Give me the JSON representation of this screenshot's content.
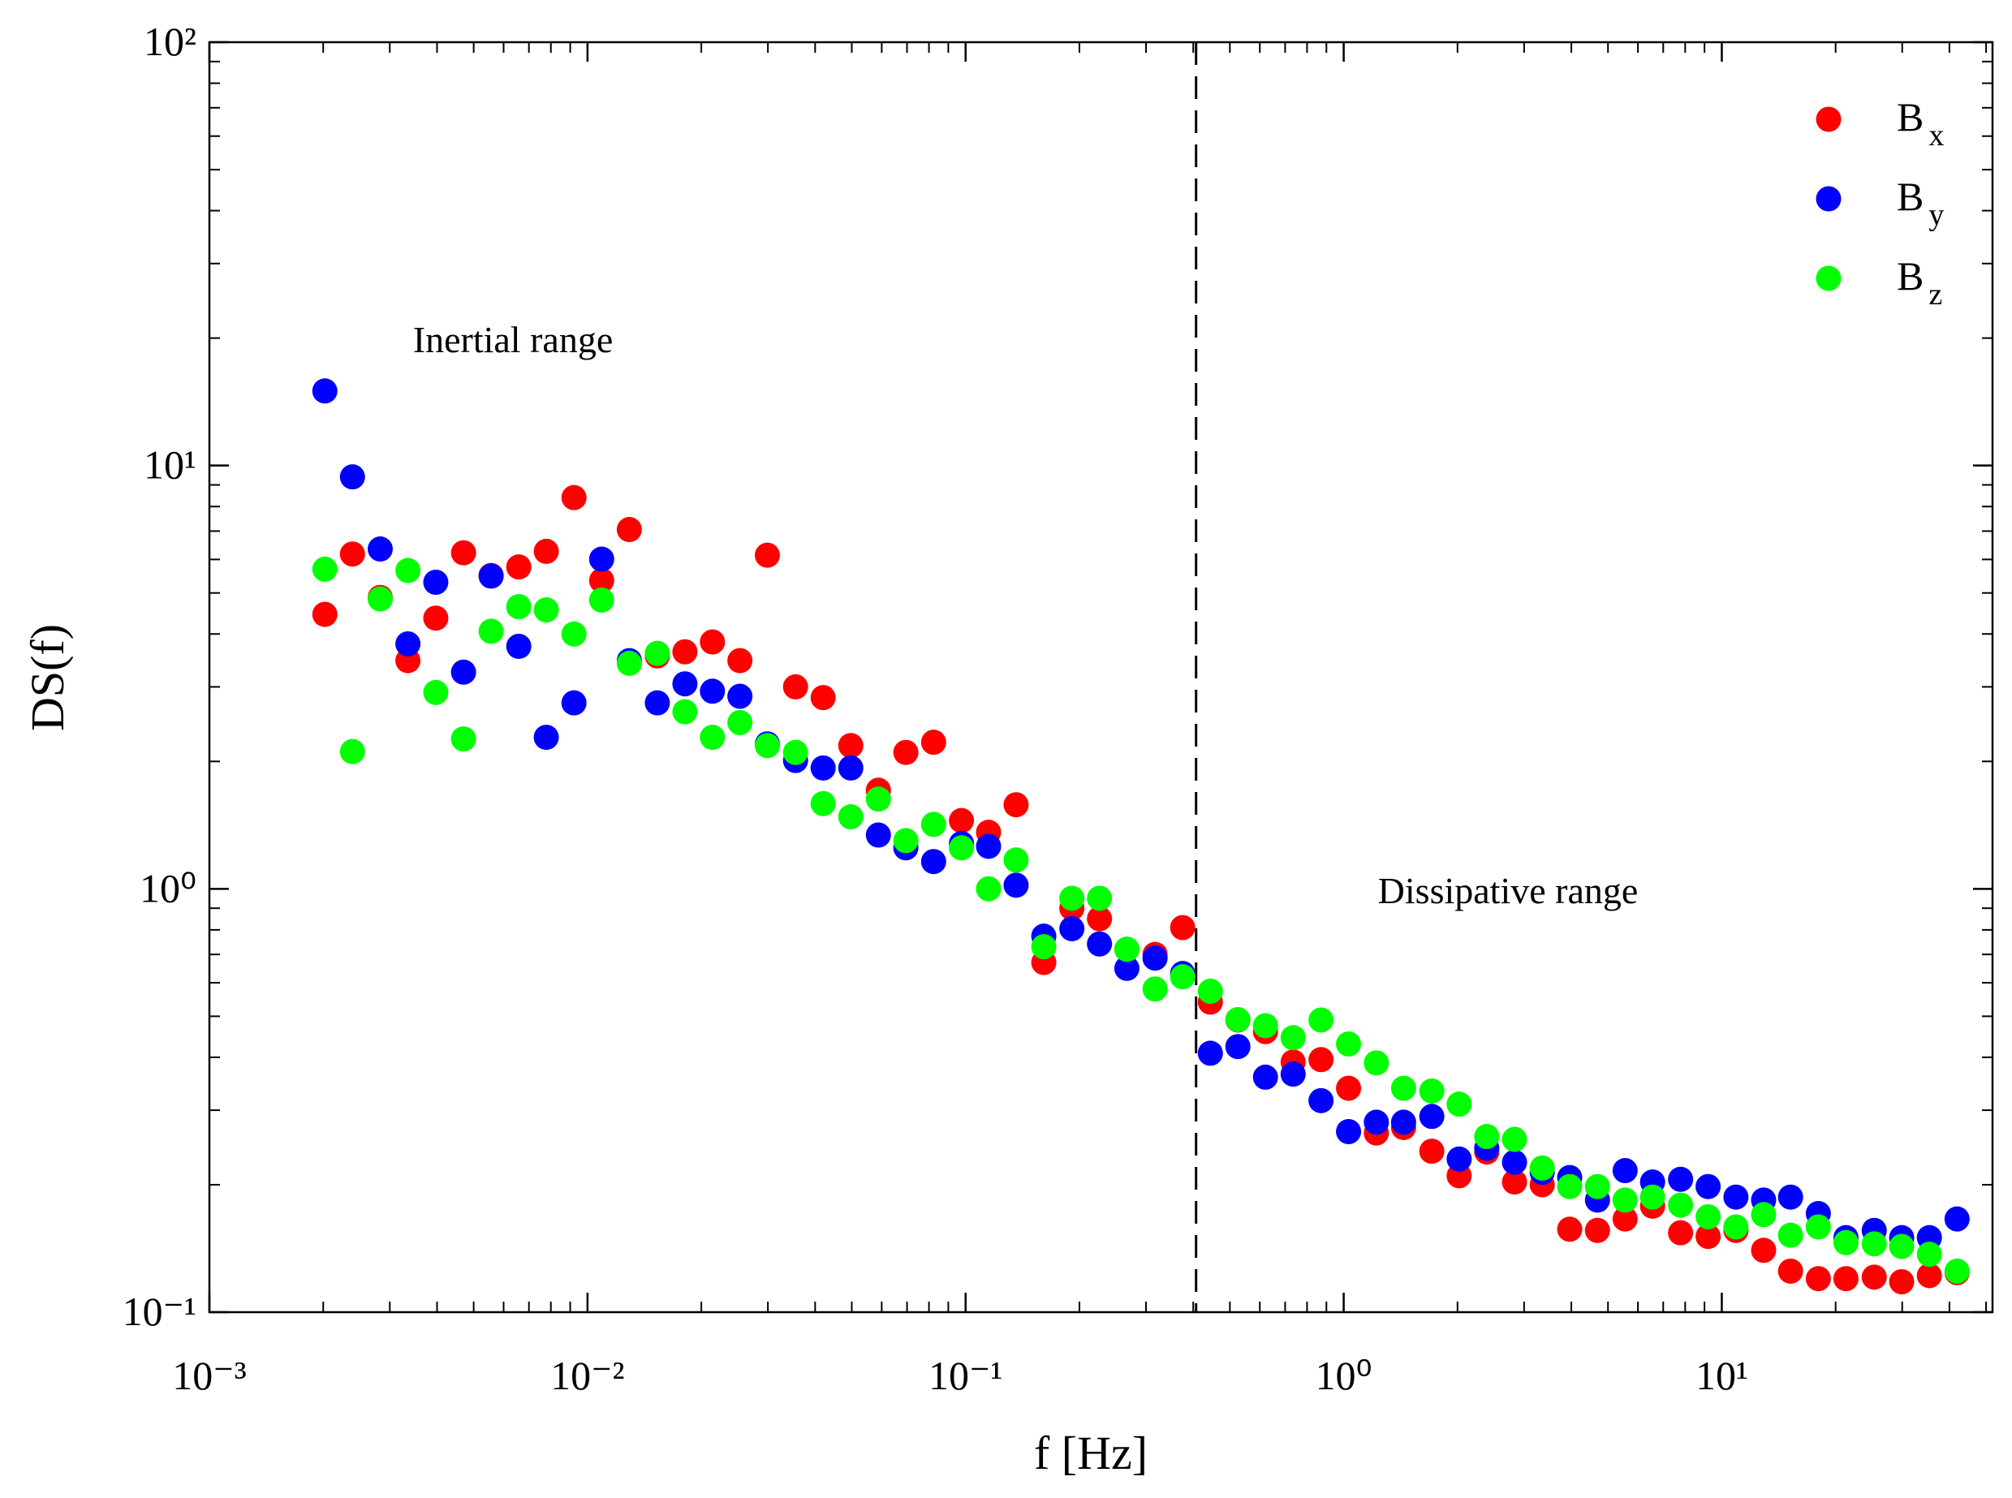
{
  "chart_data": {
    "type": "scatter",
    "xlabel": "f [Hz]",
    "ylabel": "DS(f)",
    "xscale": "log",
    "yscale": "log",
    "xlim": [
      0.001,
      52
    ],
    "ylim": [
      0.1,
      100
    ],
    "xticks": [
      {
        "value": 0.001,
        "label": "10⁻³"
      },
      {
        "value": 0.01,
        "label": "10⁻²"
      },
      {
        "value": 0.1,
        "label": "10⁻¹"
      },
      {
        "value": 1,
        "label": "10⁰"
      },
      {
        "value": 10,
        "label": "10¹"
      }
    ],
    "yticks": [
      {
        "value": 0.1,
        "label": "10⁻¹"
      },
      {
        "value": 1,
        "label": "10⁰"
      },
      {
        "value": 10,
        "label": "10¹"
      },
      {
        "value": 100,
        "label": "10²"
      }
    ],
    "legend": "upper right",
    "vline_x": 0.407,
    "annotations": [
      "Inertial range",
      "Dissipative range"
    ],
    "x": [
      0.00202,
      0.00239,
      0.00283,
      0.00335,
      0.00397,
      0.0047,
      0.00556,
      0.00658,
      0.00778,
      0.00921,
      0.0109,
      0.0129,
      0.0153,
      0.0181,
      0.0214,
      0.0253,
      0.0299,
      0.0355,
      0.042,
      0.0497,
      0.0588,
      0.0695,
      0.0823,
      0.0975,
      0.115,
      0.136,
      0.161,
      0.191,
      0.226,
      0.267,
      0.317,
      0.375,
      0.444,
      0.525,
      0.621,
      0.735,
      0.871,
      1.03,
      1.22,
      1.44,
      1.71,
      2.02,
      2.39,
      2.83,
      3.35,
      3.96,
      4.69,
      5.55,
      6.56,
      7.78,
      9.2,
      10.9,
      12.9,
      15.2,
      18.0,
      21.3,
      25.3,
      29.9,
      35.4,
      41.9
    ],
    "series": [
      {
        "name": "Bx",
        "color": "#ff0000",
        "values": [
          4.45,
          6.18,
          4.88,
          3.46,
          4.36,
          6.22,
          5.5,
          5.76,
          6.27,
          8.4,
          5.35,
          7.06,
          3.55,
          3.63,
          3.83,
          3.46,
          6.14,
          3.0,
          2.83,
          2.18,
          1.71,
          2.1,
          2.22,
          1.45,
          1.36,
          1.58,
          0.67,
          0.9,
          0.85,
          0.72,
          0.7,
          0.81,
          0.54,
          0.49,
          0.46,
          0.39,
          0.395,
          0.338,
          0.265,
          0.273,
          0.24,
          0.21,
          0.239,
          0.203,
          0.2,
          0.157,
          0.156,
          0.166,
          0.178,
          0.154,
          0.151,
          0.156,
          0.14,
          0.125,
          0.12,
          0.12,
          0.121,
          0.118,
          0.122,
          0.124
        ]
      },
      {
        "name": "By",
        "color": "#0000ff",
        "values": [
          15.0,
          9.4,
          6.35,
          3.79,
          5.3,
          3.25,
          5.48,
          3.74,
          2.28,
          2.75,
          6.01,
          3.46,
          2.75,
          3.05,
          2.93,
          2.85,
          2.2,
          2.01,
          1.93,
          1.93,
          1.34,
          1.25,
          1.16,
          1.28,
          1.26,
          1.02,
          0.773,
          0.805,
          0.741,
          0.649,
          0.686,
          0.631,
          0.409,
          0.424,
          0.359,
          0.365,
          0.316,
          0.267,
          0.281,
          0.281,
          0.29,
          0.23,
          0.244,
          0.226,
          0.214,
          0.208,
          0.184,
          0.216,
          0.203,
          0.206,
          0.198,
          0.187,
          0.184,
          0.187,
          0.171,
          0.15,
          0.156,
          0.15,
          0.15,
          0.166
        ]
      },
      {
        "name": "Bz",
        "color": "#00ff00",
        "values": [
          5.69,
          2.11,
          4.84,
          5.65,
          2.91,
          2.26,
          4.06,
          4.64,
          4.56,
          4.0,
          4.81,
          3.41,
          3.6,
          2.62,
          2.28,
          2.47,
          2.18,
          2.1,
          1.59,
          1.48,
          1.63,
          1.3,
          1.42,
          1.25,
          1.0,
          1.17,
          0.73,
          0.95,
          0.95,
          0.72,
          0.58,
          0.62,
          0.573,
          0.491,
          0.475,
          0.445,
          0.49,
          0.43,
          0.388,
          0.338,
          0.333,
          0.31,
          0.26,
          0.256,
          0.219,
          0.198,
          0.198,
          0.184,
          0.187,
          0.179,
          0.168,
          0.159,
          0.17,
          0.152,
          0.159,
          0.146,
          0.145,
          0.143,
          0.137,
          0.125
        ]
      }
    ]
  }
}
